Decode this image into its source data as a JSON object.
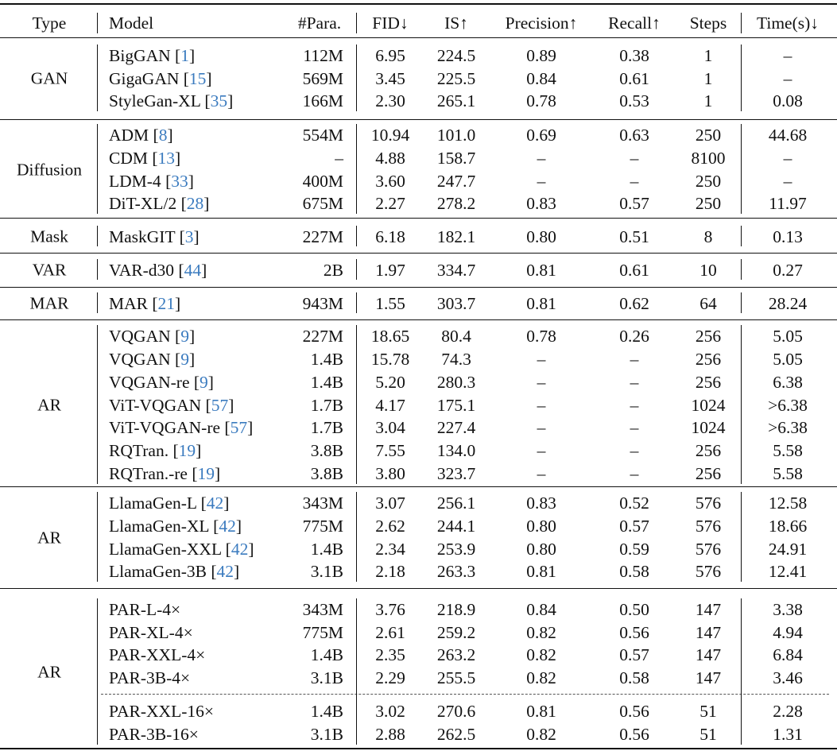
{
  "columns": {
    "type": "Type",
    "model": "Model",
    "params": "#Para.",
    "fid": "FID↓",
    "is": "IS↑",
    "precision": "Precision↑",
    "recall": "Recall↑",
    "steps": "Steps",
    "time": "Time(s)↓"
  },
  "groups": [
    {
      "type": "GAN",
      "rows": [
        {
          "model": "BigGAN",
          "ref": "1",
          "params": "112M",
          "fid": "6.95",
          "is": "224.5",
          "precision": "0.89",
          "recall": "0.38",
          "steps": "1",
          "time": "–"
        },
        {
          "model": "GigaGAN",
          "ref": "15",
          "params": "569M",
          "fid": "3.45",
          "is": "225.5",
          "precision": "0.84",
          "recall": "0.61",
          "steps": "1",
          "time": "–"
        },
        {
          "model": "StyleGan-XL",
          "ref": "35",
          "params": "166M",
          "fid": "2.30",
          "is": "265.1",
          "precision": "0.78",
          "recall": "0.53",
          "steps": "1",
          "time": "0.08"
        }
      ]
    },
    {
      "type": "Diffusion",
      "rows": [
        {
          "model": "ADM",
          "ref": "8",
          "params": "554M",
          "fid": "10.94",
          "is": "101.0",
          "precision": "0.69",
          "recall": "0.63",
          "steps": "250",
          "time": "44.68"
        },
        {
          "model": "CDM",
          "ref": "13",
          "params": "–",
          "fid": "4.88",
          "is": "158.7",
          "precision": "–",
          "recall": "–",
          "steps": "8100",
          "time": "–"
        },
        {
          "model": "LDM-4",
          "ref": "33",
          "params": "400M",
          "fid": "3.60",
          "is": "247.7",
          "precision": "–",
          "recall": "–",
          "steps": "250",
          "time": "–"
        },
        {
          "model": "DiT-XL/2",
          "ref": "28",
          "params": "675M",
          "fid": "2.27",
          "is": "278.2",
          "precision": "0.83",
          "recall": "0.57",
          "steps": "250",
          "time": "11.97"
        }
      ]
    },
    {
      "type": "Mask",
      "rows": [
        {
          "model": "MaskGIT",
          "ref": "3",
          "params": "227M",
          "fid": "6.18",
          "is": "182.1",
          "precision": "0.80",
          "recall": "0.51",
          "steps": "8",
          "time": "0.13"
        }
      ]
    },
    {
      "type": "VAR",
      "rows": [
        {
          "model": "VAR-d30",
          "ref": "44",
          "params": "2B",
          "fid": "1.97",
          "is": "334.7",
          "precision": "0.81",
          "recall": "0.61",
          "steps": "10",
          "time": "0.27"
        }
      ]
    },
    {
      "type": "MAR",
      "rows": [
        {
          "model": "MAR",
          "ref": "21",
          "params": "943M",
          "fid": "1.55",
          "is": "303.7",
          "precision": "0.81",
          "recall": "0.62",
          "steps": "64",
          "time": "28.24"
        }
      ]
    },
    {
      "type": "AR",
      "rows": [
        {
          "model": "VQGAN",
          "ref": "9",
          "params": "227M",
          "fid": "18.65",
          "is": "80.4",
          "precision": "0.78",
          "recall": "0.26",
          "steps": "256",
          "time": "5.05"
        },
        {
          "model": "VQGAN",
          "ref": "9",
          "params": "1.4B",
          "fid": "15.78",
          "is": "74.3",
          "precision": "–",
          "recall": "–",
          "steps": "256",
          "time": "5.05"
        },
        {
          "model": "VQGAN-re",
          "ref": "9",
          "params": "1.4B",
          "fid": "5.20",
          "is": "280.3",
          "precision": "–",
          "recall": "–",
          "steps": "256",
          "time": "6.38"
        },
        {
          "model": "ViT-VQGAN",
          "ref": "57",
          "params": "1.7B",
          "fid": "4.17",
          "is": "175.1",
          "precision": "–",
          "recall": "–",
          "steps": "1024",
          "time": ">6.38"
        },
        {
          "model": "ViT-VQGAN-re",
          "ref": "57",
          "params": "1.7B",
          "fid": "3.04",
          "is": "227.4",
          "precision": "–",
          "recall": "–",
          "steps": "1024",
          "time": ">6.38"
        },
        {
          "model": "RQTran.",
          "ref": "19",
          "params": "3.8B",
          "fid": "7.55",
          "is": "134.0",
          "precision": "–",
          "recall": "–",
          "steps": "256",
          "time": "5.58"
        },
        {
          "model": "RQTran.-re",
          "ref": "19",
          "params": "3.8B",
          "fid": "3.80",
          "is": "323.7",
          "precision": "–",
          "recall": "–",
          "steps": "256",
          "time": "5.58"
        }
      ]
    },
    {
      "type": "AR",
      "rows": [
        {
          "model": "LlamaGen-L",
          "ref": "42",
          "params": "343M",
          "fid": "3.07",
          "is": "256.1",
          "precision": "0.83",
          "recall": "0.52",
          "steps": "576",
          "time": "12.58"
        },
        {
          "model": "LlamaGen-XL",
          "ref": "42",
          "params": "775M",
          "fid": "2.62",
          "is": "244.1",
          "precision": "0.80",
          "recall": "0.57",
          "steps": "576",
          "time": "18.66"
        },
        {
          "model": "LlamaGen-XXL",
          "ref": "42",
          "params": "1.4B",
          "fid": "2.34",
          "is": "253.9",
          "precision": "0.80",
          "recall": "0.59",
          "steps": "576",
          "time": "24.91"
        },
        {
          "model": "LlamaGen-3B",
          "ref": "42",
          "params": "3.1B",
          "fid": "2.18",
          "is": "263.3",
          "precision": "0.81",
          "recall": "0.58",
          "steps": "576",
          "time": "12.41"
        }
      ]
    },
    {
      "type": "AR",
      "rows": [
        {
          "model": "PAR-L-4×",
          "ref": "",
          "params": "343M",
          "fid": "3.76",
          "is": "218.9",
          "precision": "0.84",
          "recall": "0.50",
          "steps": "147",
          "time": "3.38"
        },
        {
          "model": "PAR-XL-4×",
          "ref": "",
          "params": "775M",
          "fid": "2.61",
          "is": "259.2",
          "precision": "0.82",
          "recall": "0.56",
          "steps": "147",
          "time": "4.94"
        },
        {
          "model": "PAR-XXL-4×",
          "ref": "",
          "params": "1.4B",
          "fid": "2.35",
          "is": "263.2",
          "precision": "0.82",
          "recall": "0.57",
          "steps": "147",
          "time": "6.84"
        },
        {
          "model": "PAR-3B-4×",
          "ref": "",
          "params": "3.1B",
          "fid": "2.29",
          "is": "255.5",
          "precision": "0.82",
          "recall": "0.58",
          "steps": "147",
          "time": "3.46"
        },
        {
          "model": "PAR-XXL-16×",
          "ref": "",
          "params": "1.4B",
          "fid": "3.02",
          "is": "270.6",
          "precision": "0.81",
          "recall": "0.56",
          "steps": "51",
          "time": "2.28"
        },
        {
          "model": "PAR-3B-16×",
          "ref": "",
          "params": "3.1B",
          "fid": "2.88",
          "is": "262.5",
          "precision": "0.82",
          "recall": "0.56",
          "steps": "51",
          "time": "1.31"
        }
      ]
    }
  ]
}
